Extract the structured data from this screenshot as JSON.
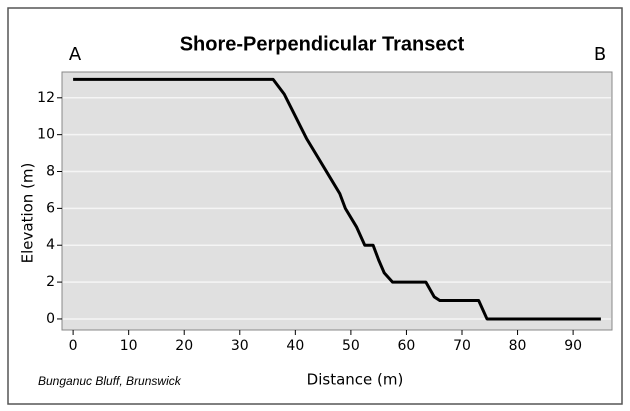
{
  "chart_data": {
    "type": "line",
    "title": "Shore-Perpendicular Transect",
    "left_label": "A",
    "right_label": "B",
    "xlabel": "Distance (m)",
    "ylabel": "Elevation (m)",
    "caption": "Bunganuc Bluff, Brunswick",
    "x": [
      0,
      36,
      38,
      40,
      42,
      44,
      46,
      48,
      49,
      51,
      52.5,
      54,
      55,
      56,
      57.5,
      63.5,
      65,
      66,
      73,
      74.5,
      95
    ],
    "values": [
      13,
      13,
      12.2,
      11,
      9.8,
      8.8,
      7.8,
      6.8,
      6,
      5,
      4,
      4,
      3.2,
      2.5,
      2,
      2,
      1.2,
      1,
      1,
      0,
      0
    ],
    "color": "#000000",
    "xlim": [
      -2,
      97
    ],
    "ylim": [
      -0.6,
      13.4
    ],
    "xticks": [
      0,
      10,
      20,
      30,
      40,
      50,
      60,
      70,
      80,
      90
    ],
    "yticks": [
      0,
      2,
      4,
      6,
      8,
      10,
      12
    ],
    "grid": true
  }
}
